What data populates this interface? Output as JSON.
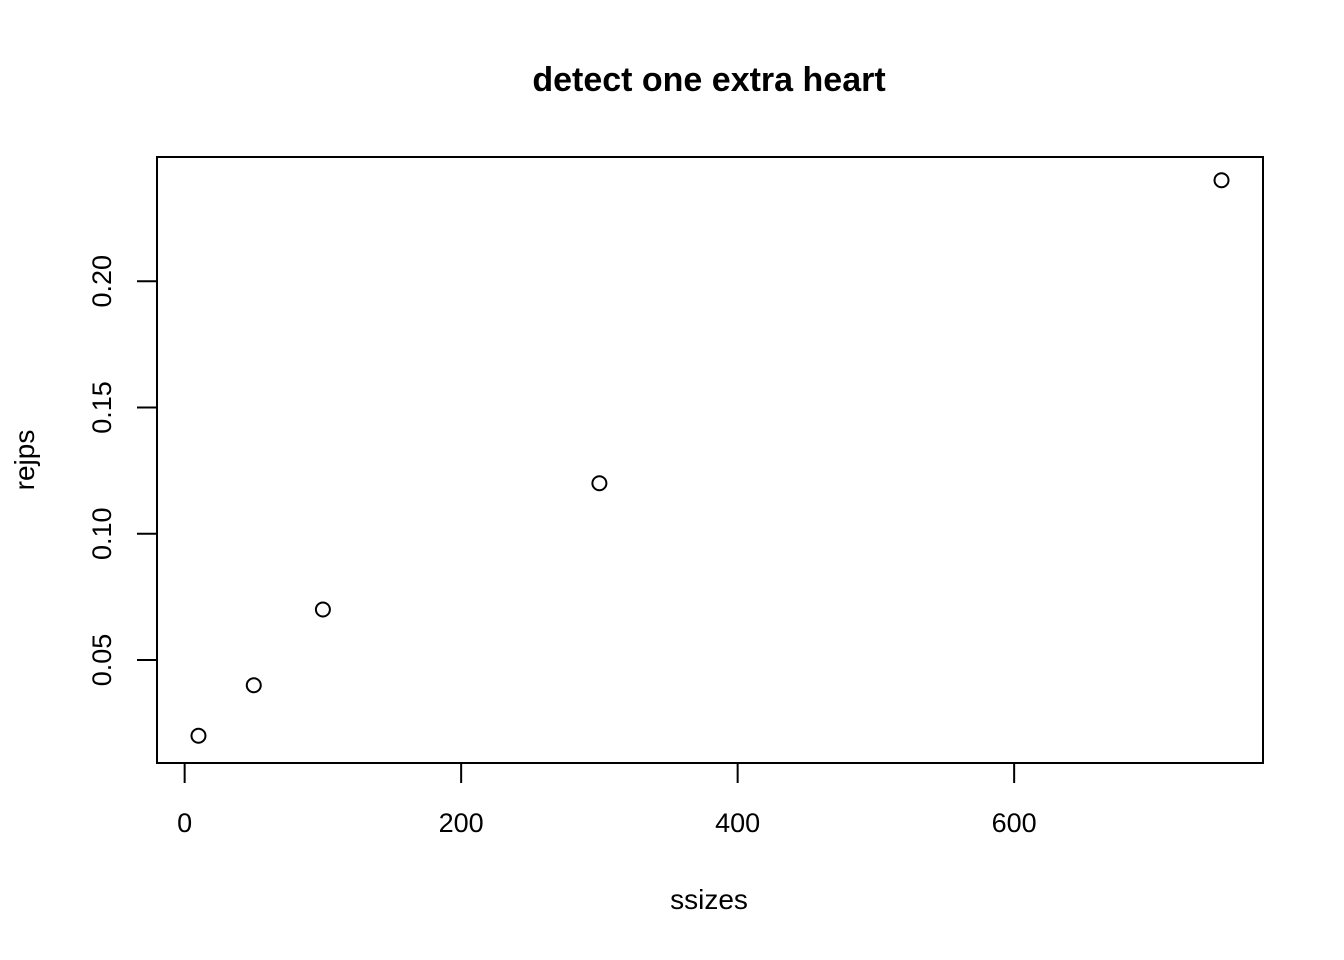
{
  "chart_data": {
    "type": "scatter",
    "title": "detect one extra heart",
    "xlabel": "ssizes",
    "ylabel": "rejps",
    "x": [
      10,
      50,
      100,
      300,
      750
    ],
    "y": [
      0.02,
      0.04,
      0.07,
      0.12,
      0.24
    ],
    "xlim": [
      -20,
      780
    ],
    "ylim": [
      0.0092,
      0.2492
    ],
    "xticks": [
      0,
      200,
      400,
      600
    ],
    "xtick_labels": [
      "0",
      "200",
      "400",
      "600"
    ],
    "yticks": [
      0.05,
      0.1,
      0.15,
      0.2
    ],
    "ytick_labels": [
      "0.05",
      "0.10",
      "0.15",
      "0.20"
    ],
    "grid": false,
    "marker": "open-circle",
    "color": "#000000"
  }
}
